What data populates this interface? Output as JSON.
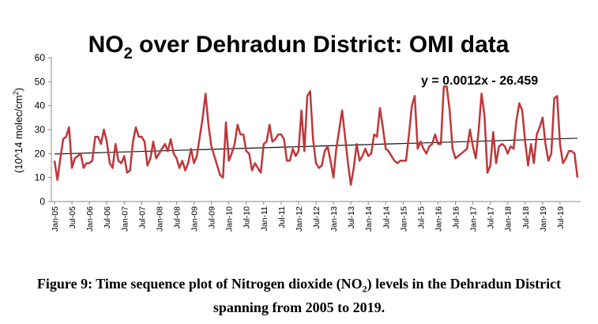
{
  "chart_data": {
    "type": "line",
    "title": {
      "main": "NO",
      "sub": "2",
      "rest": " over Dehradun District: OMI data"
    },
    "ylabel": "(10^14 molec/cm",
    "ylabel_sup": "2",
    "ylabel_tail": ")",
    "xlabel": "",
    "ylim": [
      0,
      60
    ],
    "yticks": [
      "0",
      "10",
      "20",
      "30",
      "40",
      "50",
      "60"
    ],
    "xtick_labels": [
      "Jan-05",
      "Jul-05",
      "Jan-06",
      "Jul-06",
      "Jan-07",
      "Jul-07",
      "Jan-08",
      "Jul-08",
      "Jan-09",
      "Jul-09",
      "Jan-10",
      "Jul-10",
      "Jan-11",
      "Jul-11",
      "Jan-12",
      "Jul-12",
      "Jan-13",
      "Jul-13",
      "Jan-14",
      "Jul-14",
      "Jan-15",
      "Jul-15",
      "Jan-16",
      "Jul-16",
      "Jan-17",
      "Jul-17",
      "Jan-18",
      "Jul-18",
      "Jan-19",
      "Jul-19"
    ],
    "trendline_label": "y = 0.0012x - 26.459",
    "trend_start": 19.8,
    "trend_end": 26.4,
    "grid": false,
    "series": [
      {
        "color": "#c0363a",
        "values": [
          17,
          9,
          18,
          26,
          27,
          31,
          14,
          18,
          19,
          20,
          14,
          16,
          16,
          17,
          27,
          27,
          24,
          30,
          25,
          16,
          14,
          24,
          17,
          16,
          19,
          12,
          13,
          25,
          31,
          27,
          27,
          25,
          15,
          18,
          25,
          18,
          20,
          22,
          24,
          21,
          26,
          20,
          18,
          14,
          17,
          13,
          16,
          22,
          16,
          19,
          27,
          35,
          45,
          32,
          23,
          19,
          15,
          11,
          10,
          33,
          17,
          20,
          24,
          32,
          28,
          28,
          21,
          20,
          13,
          16,
          14,
          12,
          24,
          25,
          32,
          25,
          26,
          28,
          28,
          26,
          17,
          17,
          22,
          19,
          21,
          38,
          21,
          44,
          46,
          26,
          16,
          14,
          15,
          21,
          23,
          17,
          10,
          22,
          30,
          38,
          27,
          16,
          7,
          14,
          24,
          17,
          19,
          22,
          19,
          20,
          28,
          27,
          39,
          31,
          22,
          21,
          19,
          17,
          16,
          17,
          17,
          17,
          28,
          40,
          44,
          22,
          25,
          22,
          20,
          23,
          24,
          28,
          24,
          24,
          48,
          48,
          38,
          22,
          18,
          19,
          20,
          21,
          22,
          30,
          23,
          18,
          30,
          45,
          36,
          12,
          15,
          29,
          16,
          23,
          24,
          23,
          20,
          23,
          22,
          34,
          41,
          38,
          25,
          15,
          24,
          16,
          28,
          31,
          35,
          24,
          17,
          20,
          43,
          44,
          24,
          16,
          18,
          21,
          21,
          20,
          10
        ]
      }
    ]
  },
  "caption": {
    "line1_a": "Figure 9: Time sequence plot of Nitrogen dioxide (NO",
    "line1_sub": "2",
    "line1_b": ") levels in the Dehradun District",
    "line2": "spanning from 2005 to 2019."
  }
}
